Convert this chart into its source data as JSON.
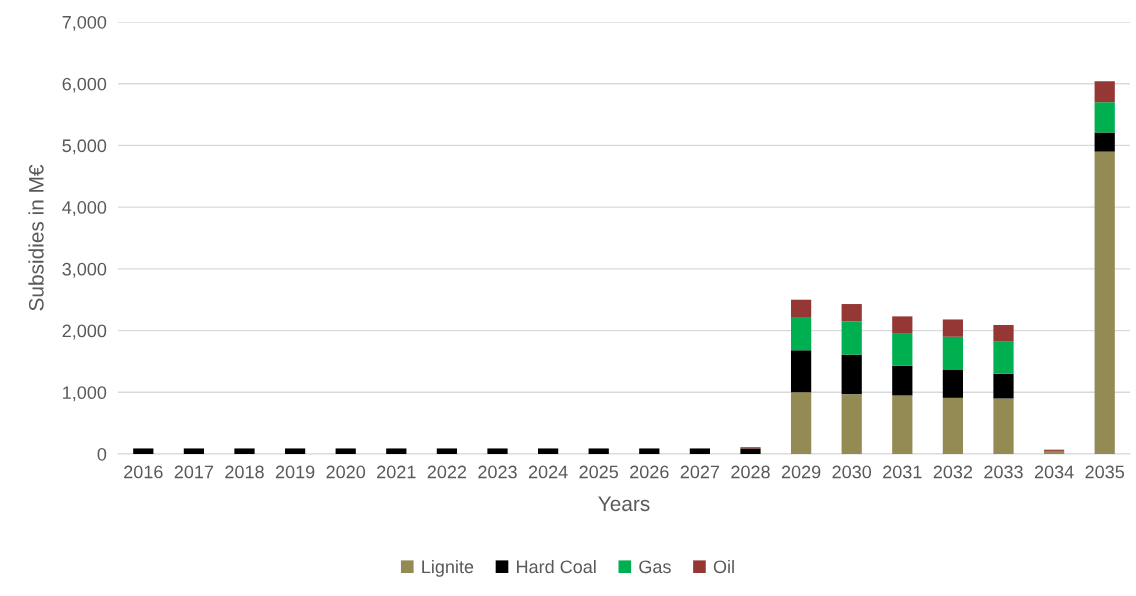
{
  "chart_data": {
    "type": "bar",
    "stacked": true,
    "xlabel": "Years",
    "ylabel": "Subsidies in M€",
    "categories": [
      "2016",
      "2017",
      "2018",
      "2019",
      "2020",
      "2021",
      "2022",
      "2023",
      "2024",
      "2025",
      "2026",
      "2027",
      "2028",
      "2029",
      "2030",
      "2031",
      "2032",
      "2033",
      "2034",
      "2035"
    ],
    "series": [
      {
        "name": "Lignite",
        "color": "#948a54",
        "values": [
          0,
          0,
          0,
          0,
          0,
          0,
          0,
          0,
          0,
          0,
          0,
          0,
          0,
          1000,
          970,
          950,
          910,
          900,
          50,
          4900
        ]
      },
      {
        "name": "Hard Coal",
        "color": "#000000",
        "values": [
          90,
          90,
          90,
          90,
          90,
          90,
          90,
          90,
          90,
          90,
          90,
          90,
          90,
          680,
          640,
          480,
          460,
          400,
          0,
          310
        ]
      },
      {
        "name": "Gas",
        "color": "#00b050",
        "values": [
          0,
          0,
          0,
          0,
          0,
          0,
          0,
          0,
          0,
          0,
          0,
          0,
          0,
          540,
          540,
          530,
          530,
          520,
          0,
          490
        ]
      },
      {
        "name": "Oil",
        "color": "#953735",
        "values": [
          0,
          0,
          0,
          0,
          0,
          0,
          0,
          0,
          0,
          0,
          0,
          0,
          20,
          280,
          280,
          270,
          280,
          270,
          20,
          340
        ]
      }
    ],
    "ylim": [
      0,
      7000
    ],
    "yticks": [
      {
        "value": 0,
        "label": "0"
      },
      {
        "value": 1000,
        "label": "1,000"
      },
      {
        "value": 2000,
        "label": "2,000"
      },
      {
        "value": 3000,
        "label": "3,000"
      },
      {
        "value": 4000,
        "label": "4,000"
      },
      {
        "value": 5000,
        "label": "5,000"
      },
      {
        "value": 6000,
        "label": "6,000"
      },
      {
        "value": 7000,
        "label": "7,000"
      }
    ],
    "grid": "y",
    "legend": "bottom"
  }
}
